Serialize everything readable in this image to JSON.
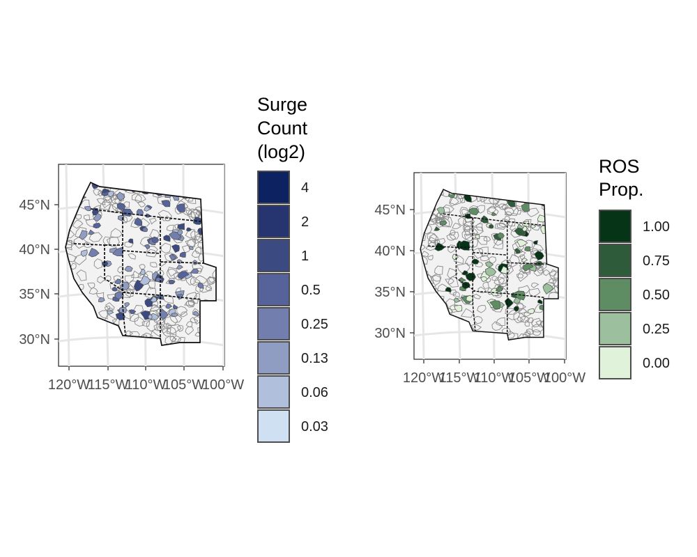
{
  "panels": [
    {
      "id": "surge",
      "y_ticks": [
        "45°N",
        "40°N",
        "35°N",
        "30°N"
      ],
      "x_ticks": [
        "120°W",
        "115°W",
        "110°W",
        "105°W",
        "100°W"
      ],
      "legend": {
        "title_lines": [
          "Surge",
          "Count",
          "(log2)"
        ],
        "items": [
          {
            "label": "4",
            "color": "#0d2260"
          },
          {
            "label": "2",
            "color": "#26356f"
          },
          {
            "label": "1",
            "color": "#3c4a82"
          },
          {
            "label": "0.5",
            "color": "#56629a"
          },
          {
            "label": "0.25",
            "color": "#727fae"
          },
          {
            "label": "0.13",
            "color": "#909dc3"
          },
          {
            "label": "0.06",
            "color": "#afbfdc"
          },
          {
            "label": "0.03",
            "color": "#d0e0f3"
          }
        ]
      },
      "fill_colors": [
        "#909dc3",
        "#727fae",
        "#56629a",
        "#afbfdc",
        "#3c4a82"
      ]
    },
    {
      "id": "ros",
      "y_ticks": [
        "45°N",
        "40°N",
        "35°N",
        "30°N"
      ],
      "x_ticks": [
        "120°W",
        "115°W",
        "110°W",
        "105°W",
        "100°W"
      ],
      "legend": {
        "title_lines": [
          "ROS",
          "Prop."
        ],
        "items": [
          {
            "label": "1.00",
            "color": "#063416"
          },
          {
            "label": "0.75",
            "color": "#2e5b39"
          },
          {
            "label": "0.50",
            "color": "#5f8d63"
          },
          {
            "label": "0.25",
            "color": "#9cc09d"
          },
          {
            "label": "0.00",
            "color": "#e0f3da"
          }
        ]
      },
      "fill_colors": [
        "#063416",
        "#2e5b39",
        "#5f8d63",
        "#9cc09d",
        "#e0f3da"
      ]
    }
  ]
}
